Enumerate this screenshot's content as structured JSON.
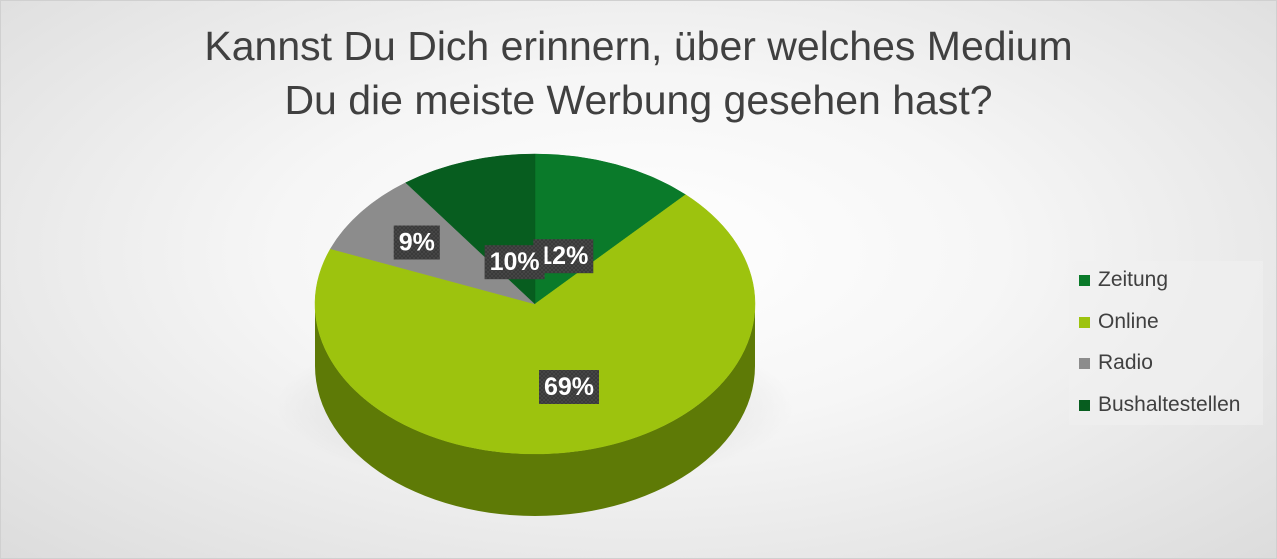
{
  "chart_data": {
    "type": "pie",
    "title_lines": [
      "Kannst Du Dich erinnern, über welches Medium",
      "Du die meiste Werbung gesehen hast?"
    ],
    "slices": [
      {
        "label": "Zeitung",
        "value": 12,
        "data_label": "12%",
        "color": "#0a7a2a",
        "side": "#065219"
      },
      {
        "label": "Online",
        "value": 69,
        "data_label": "69%",
        "color": "#9dc30e",
        "side": "#5e7a06"
      },
      {
        "label": "Radio",
        "value": 9,
        "data_label": "9%",
        "color": "#8c8c8c",
        "side": "#5a5a5a"
      },
      {
        "label": "Bushaltestellen",
        "value": 10,
        "data_label": "10%",
        "color": "#075d1f",
        "side": "#033d12"
      }
    ],
    "legend_position": "right",
    "style": "3d-pie"
  }
}
